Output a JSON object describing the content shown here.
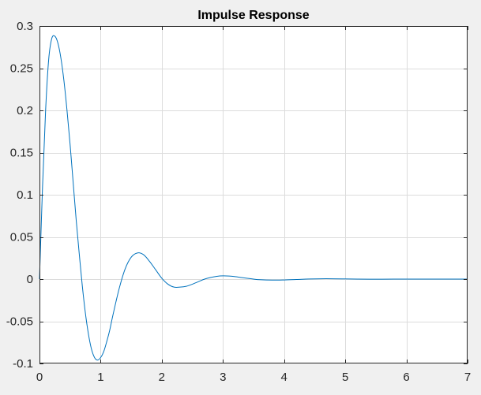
{
  "chart_data": {
    "type": "line",
    "title": "Impulse Response",
    "xlabel": "",
    "ylabel": "",
    "xlim": [
      0,
      7
    ],
    "ylim": [
      -0.1,
      0.3
    ],
    "xticks": [
      0,
      1,
      2,
      3,
      4,
      5,
      6,
      7
    ],
    "xtick_labels": [
      "0",
      "1",
      "2",
      "3",
      "4",
      "5",
      "6",
      "7"
    ],
    "yticks": [
      0.3,
      0.25,
      0.2,
      0.15,
      0.1,
      0.05,
      0,
      -0.05,
      -0.1
    ],
    "ytick_labels": [
      "0.3",
      "0.25",
      "0.2",
      "0.15",
      "0.1",
      "0.05",
      "0",
      "-0.05",
      "-0.1"
    ],
    "grid": true,
    "colors": {
      "line": "#0072bd",
      "axes_bg": "#ffffff",
      "figure_bg": "#f0f0f0",
      "grid": "#dcdcdc",
      "axis": "#262626"
    },
    "series": [
      {
        "x": [
          0,
          0.05,
          0.1,
          0.15,
          0.2,
          0.25,
          0.3,
          0.35,
          0.4,
          0.45,
          0.5,
          0.55,
          0.6,
          0.65,
          0.7,
          0.75,
          0.8,
          0.85,
          0.9,
          0.95,
          1.0,
          1.05,
          1.1,
          1.15,
          1.2,
          1.3,
          1.4,
          1.5,
          1.6,
          1.7,
          1.8,
          1.9,
          2.0,
          2.1,
          2.2,
          2.3,
          2.4,
          2.5,
          2.6,
          2.7,
          2.8,
          2.9,
          3.0,
          3.1,
          3.2,
          3.3,
          3.4,
          3.5,
          3.6,
          3.8,
          4.0,
          4.2,
          4.4,
          4.6,
          4.8,
          5.0,
          5.2,
          5.4,
          5.6,
          5.8,
          6.0,
          6.2,
          6.4,
          6.6,
          6.8,
          7.0
        ],
        "y": [
          0,
          0.11,
          0.2,
          0.26,
          0.285,
          0.288,
          0.28,
          0.262,
          0.235,
          0.2,
          0.16,
          0.115,
          0.07,
          0.03,
          -0.008,
          -0.04,
          -0.065,
          -0.083,
          -0.093,
          -0.096,
          -0.093,
          -0.086,
          -0.074,
          -0.06,
          -0.043,
          -0.012,
          0.012,
          0.026,
          0.031,
          0.029,
          0.021,
          0.011,
          0.001,
          -0.006,
          -0.0095,
          -0.0095,
          -0.0085,
          -0.006,
          -0.003,
          0.0,
          0.002,
          0.0033,
          0.0038,
          0.0036,
          0.0029,
          0.0019,
          0.0009,
          0.0,
          -0.0007,
          -0.0012,
          -0.001,
          -0.0005,
          0.0001,
          0.0004,
          0.0004,
          0.0002,
          0.0,
          -0.0001,
          -0.0001,
          0.0,
          0.0,
          0.0,
          0.0,
          0.0,
          0.0,
          0.0
        ]
      }
    ]
  }
}
